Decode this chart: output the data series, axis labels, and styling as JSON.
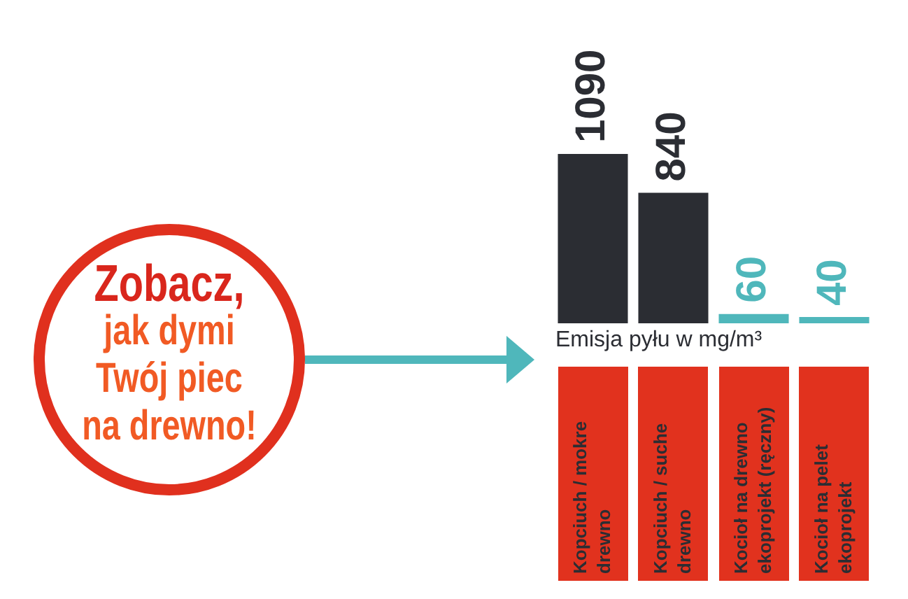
{
  "chart_data": {
    "type": "bar",
    "xlabel": "Emisja pyłu w mg/m³",
    "categories": [
      "Kopciuch / mokre drewno",
      "Kopciuch / suche drewno",
      "Kocioł na drewno ekoprojekt (ręczny)",
      "Kocioł na pelet ekoprojekt"
    ],
    "values": [
      1090,
      840,
      60,
      40
    ],
    "colors": [
      "#2b2d33",
      "#2b2d33",
      "#4fb7bb",
      "#4fb7bb"
    ],
    "data_labels": true,
    "annotations": [
      "Zobacz, jak dymi Twój piec na drewno!"
    ]
  }
}
